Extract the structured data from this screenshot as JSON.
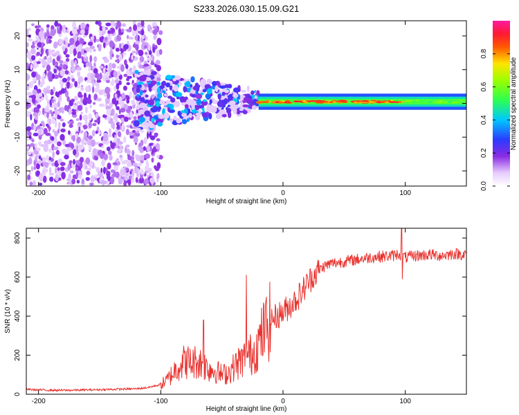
{
  "figure_title": "S233.2026.030.15.09.G21",
  "chart_data": [
    {
      "type": "heatmap",
      "title": "S233.2026.030.15.09.G21",
      "xlabel": "Height of straight line (km)",
      "ylabel": "Frequency (Hz)",
      "xlim": [
        -210,
        150
      ],
      "ylim": [
        -24.5,
        24.5
      ],
      "xticks": [
        -200,
        -100,
        0,
        100
      ],
      "yticks": [
        -20,
        -10,
        0,
        10,
        20
      ],
      "colorbar": {
        "label": "Normalized spectral amplitude",
        "range": [
          0,
          1
        ],
        "ticks": [
          0.0,
          0.2,
          0.4,
          0.6,
          0.8
        ],
        "tick_labels": [
          "0.0",
          "0.2",
          "0.4",
          "0.6",
          "0.8"
        ],
        "colormap": "rainbow (white-violet-blue-cyan-green-yellow-red-magenta)"
      },
      "regions": [
        {
          "name": "noise",
          "x_range": [
            -210,
            -100
          ],
          "freq_range": [
            -24,
            24
          ],
          "amplitude": 0.1
        },
        {
          "name": "transition",
          "x_range": [
            -120,
            -20
          ],
          "freq_range": [
            -8,
            10
          ],
          "amplitude": 0.3
        },
        {
          "name": "signal band",
          "x_range": [
            -20,
            150
          ],
          "freq_center": 0.5,
          "freq_halfwidth": 1.5,
          "amplitude": 0.9
        }
      ]
    },
    {
      "type": "line",
      "xlabel": "Height of straight line (km)",
      "ylabel": "SNR (10 * v/v)",
      "xlim": [
        -210,
        150
      ],
      "ylim": [
        0,
        850
      ],
      "xticks": [
        -200,
        -100,
        0,
        100
      ],
      "yticks": [
        0,
        200,
        400,
        600,
        800
      ],
      "series": [
        {
          "name": "SNR",
          "color": "#e8322e",
          "x": [
            -210,
            -200,
            -180,
            -160,
            -140,
            -120,
            -110,
            -100,
            -95,
            -90,
            -85,
            -80,
            -75,
            -70,
            -65,
            -60,
            -55,
            -50,
            -45,
            -40,
            -35,
            -30,
            -25,
            -20,
            -15,
            -10,
            -5,
            0,
            5,
            10,
            15,
            20,
            25,
            30,
            35,
            40,
            50,
            60,
            70,
            80,
            90,
            95,
            100,
            110,
            120,
            130,
            140,
            150
          ],
          "values": [
            25,
            22,
            20,
            22,
            25,
            28,
            35,
            50,
            70,
            110,
            150,
            170,
            160,
            170,
            150,
            130,
            120,
            100,
            110,
            140,
            170,
            190,
            210,
            260,
            330,
            380,
            400,
            420,
            450,
            480,
            520,
            570,
            610,
            640,
            660,
            670,
            680,
            690,
            700,
            705,
            710,
            720,
            700,
            710,
            715,
            710,
            720,
            715
          ],
          "annotations": [
            {
              "x": -65,
              "peak": 380
            },
            {
              "x": -30,
              "peak": 610
            },
            {
              "x": 97,
              "peak": 850,
              "min": 590
            }
          ]
        }
      ]
    }
  ]
}
